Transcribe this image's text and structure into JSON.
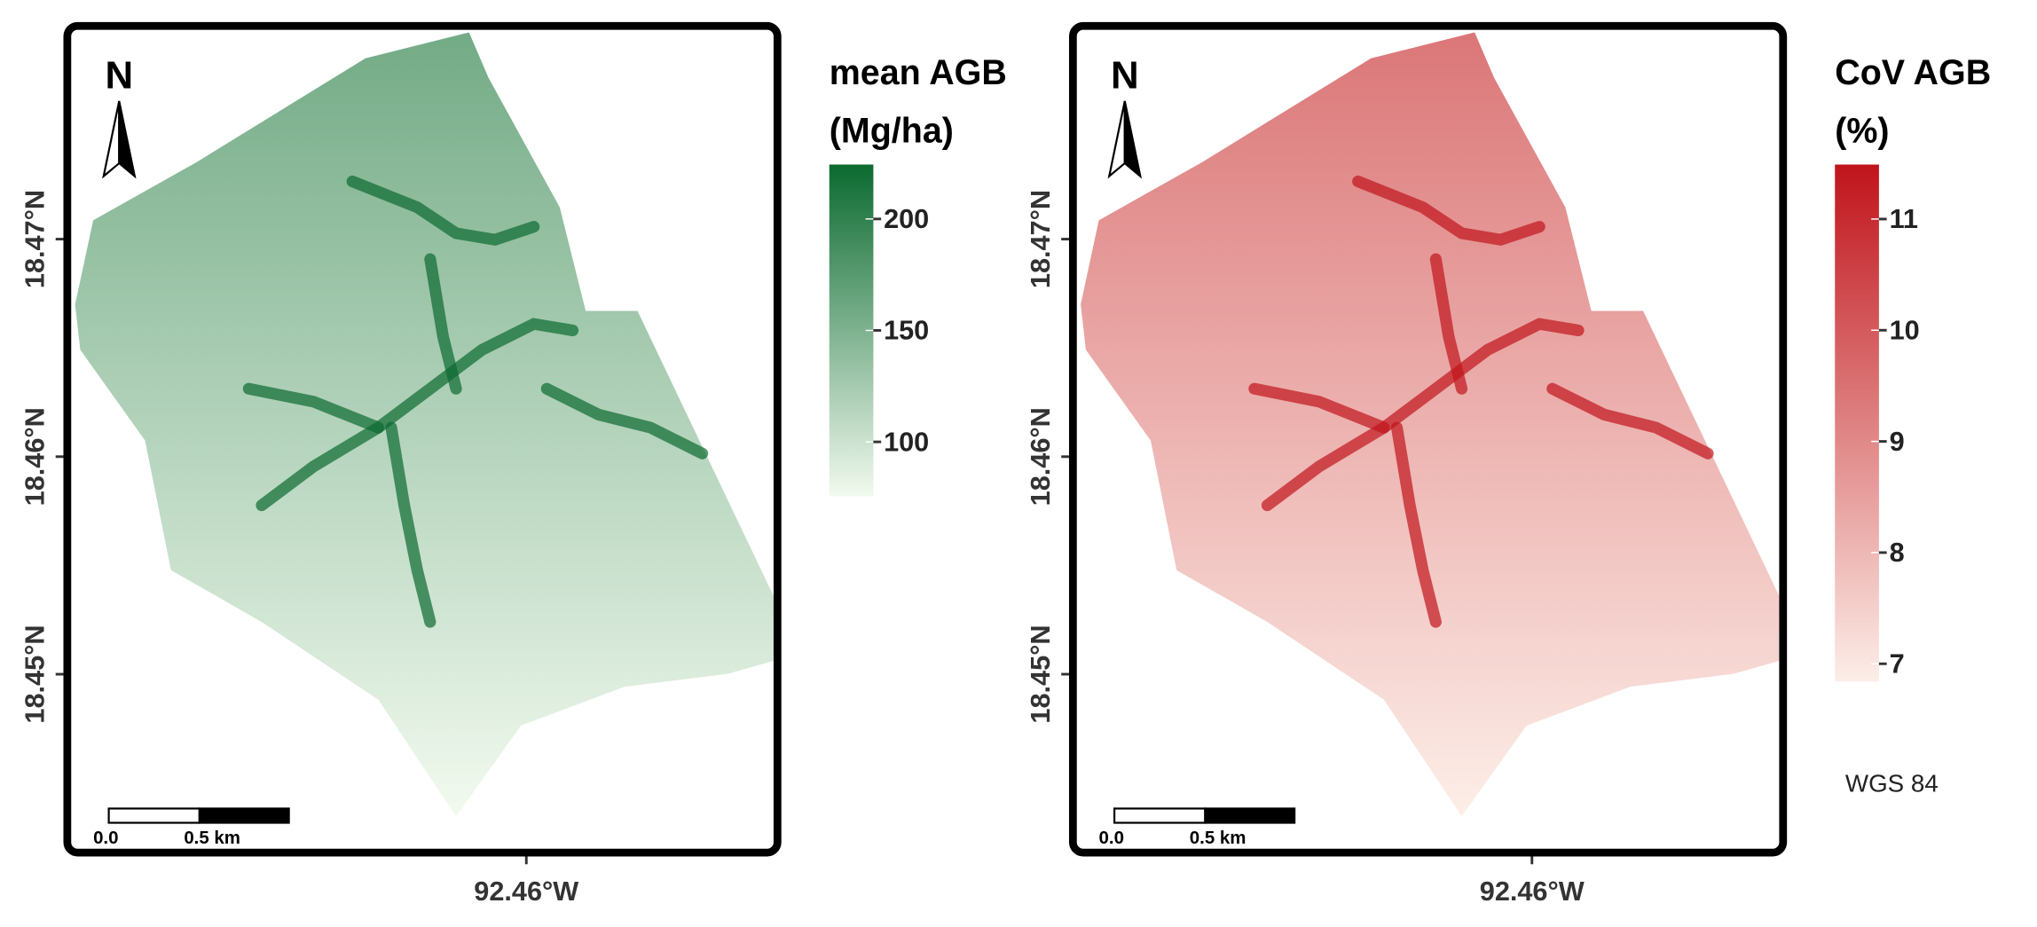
{
  "maps": [
    {
      "north": "N",
      "xlim": [
        -92.4823,
        -92.4478
      ],
      "ylim": [
        18.4418,
        18.4798
      ],
      "xticks": [
        {
          "value": -92.46,
          "label": "92.46°W"
        }
      ],
      "yticks": [
        {
          "value": 18.45,
          "label": "18.45°N"
        },
        {
          "value": 18.46,
          "label": "18.46°N"
        },
        {
          "value": 18.47,
          "label": "18.47°N"
        }
      ],
      "scale_bar": [
        "0.0",
        "0.5 km"
      ],
      "legend_title": [
        "mean AGB",
        "(Mg/ha)"
      ],
      "colorbar": {
        "range": [
          75.6,
          224.4
        ],
        "ticks": [
          100,
          150,
          200
        ],
        "colors": [
          "#f2faef",
          "#0b6a30"
        ]
      }
    },
    {
      "north": "N",
      "xlim": [
        -92.4823,
        -92.4478
      ],
      "ylim": [
        18.4418,
        18.4798
      ],
      "xticks": [
        {
          "value": -92.46,
          "label": "92.46°W"
        }
      ],
      "yticks": [
        {
          "value": 18.45,
          "label": "18.45°N"
        },
        {
          "value": 18.46,
          "label": "18.46°N"
        },
        {
          "value": 18.47,
          "label": "18.47°N"
        }
      ],
      "scale_bar": [
        "0.0",
        "0.5 km"
      ],
      "legend_title": [
        "CoV AGB",
        "(%)"
      ],
      "colorbar": {
        "range": [
          6.84,
          11.49
        ],
        "ticks": [
          7,
          8,
          9,
          10,
          11
        ],
        "colors": [
          "#fdeee8",
          "#c0141b"
        ]
      }
    }
  ],
  "crs": "WGS 84"
}
